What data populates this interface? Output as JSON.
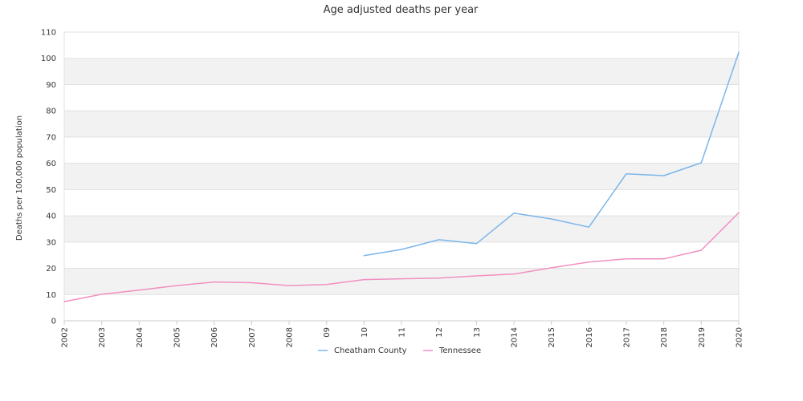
{
  "chart_data": {
    "type": "line",
    "title": "Age adjusted deaths per year",
    "xlabel": "",
    "ylabel": "Deaths per 100,000 population",
    "ylim": [
      0,
      110
    ],
    "yticks": [
      "0",
      "10",
      "20",
      "30",
      "40",
      "50",
      "60",
      "70",
      "80",
      "90",
      "100",
      "110"
    ],
    "categories": [
      "2002",
      "2003",
      "2004",
      "2005",
      "2006",
      "2007",
      "2008",
      "09",
      "10",
      "11",
      "12",
      "13",
      "2014",
      "2015",
      "2016",
      "2017",
      "2018",
      "2019",
      "2020"
    ],
    "grid": "horizontal, alternating bands",
    "legend_position": "bottom-center",
    "series": [
      {
        "name": "Cheatham County",
        "color": "#7cb5ec",
        "values": [
          null,
          null,
          null,
          null,
          null,
          null,
          null,
          null,
          24.8,
          27.2,
          30.9,
          29.4,
          41.0,
          38.8,
          35.7,
          56.0,
          55.3,
          60.2,
          102.3
        ]
      },
      {
        "name": "Tennessee",
        "color": "#f28fc2",
        "values": [
          7.3,
          10.1,
          11.7,
          13.4,
          14.8,
          14.5,
          13.4,
          13.8,
          15.7,
          16.0,
          16.3,
          17.1,
          17.8,
          20.2,
          22.4,
          23.6,
          23.6,
          26.9,
          41.2
        ]
      }
    ]
  }
}
